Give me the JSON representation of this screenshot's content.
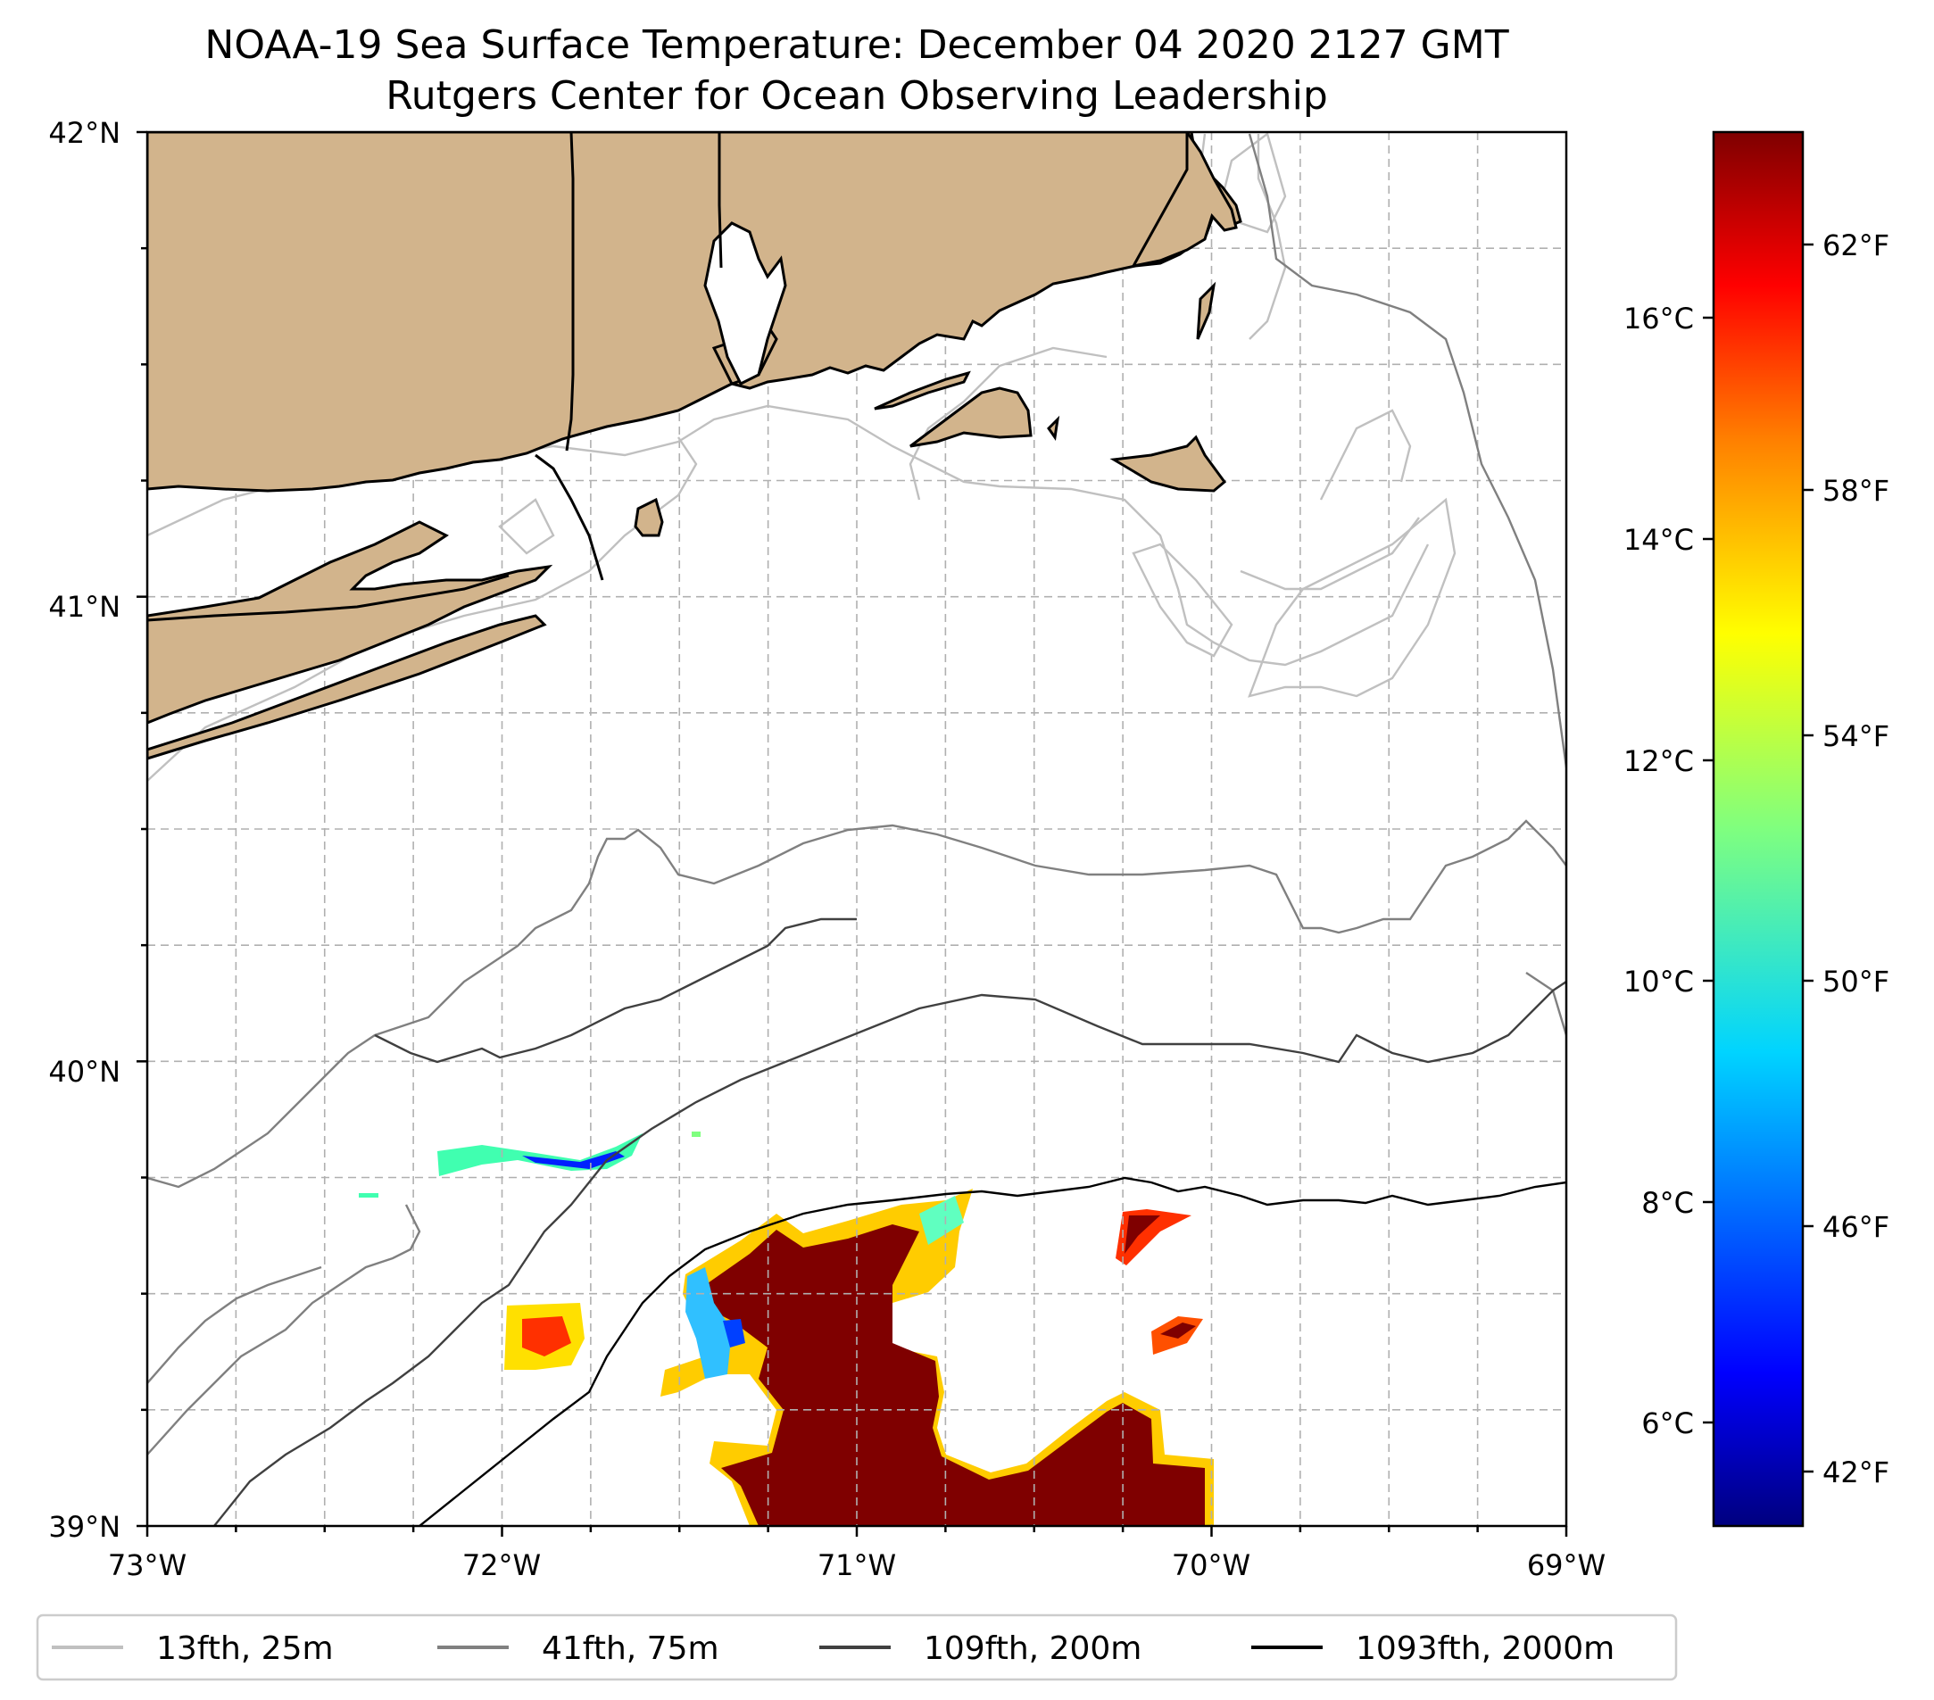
{
  "title": {
    "line1": "NOAA-19 Sea Surface Temperature: December 04 2020 2127 GMT",
    "line2": "Rutgers Center for Ocean Observing Leadership"
  },
  "map": {
    "lon_range": [
      -73,
      -69
    ],
    "lat_range": [
      39,
      42
    ],
    "lon_ticks": [
      "73°W",
      "72°W",
      "71°W",
      "70°W",
      "69°W"
    ],
    "lat_ticks": [
      "42°N",
      "41°N",
      "40°N",
      "39°N"
    ]
  },
  "colorbar": {
    "colormap": "jet",
    "celsius_ticks": [
      "16°C",
      "14°C",
      "12°C",
      "10°C",
      "8°C",
      "6°C"
    ],
    "fahrenheit_ticks": [
      "62°F",
      "58°F",
      "54°F",
      "50°F",
      "46°F",
      "42°F"
    ],
    "colors": [
      "#00007f",
      "#0000ff",
      "#007fff",
      "#00ffff",
      "#7fff7f",
      "#ffff00",
      "#ff7f00",
      "#ff0000",
      "#7f0000"
    ]
  },
  "legend": {
    "items": [
      {
        "label": "13fth, 25m",
        "color": "#c0c0c0"
      },
      {
        "label": "41fth, 75m",
        "color": "#808080"
      },
      {
        "label": "109fth, 200m",
        "color": "#404040"
      },
      {
        "label": "1093fth, 2000m",
        "color": "#000000"
      }
    ]
  },
  "colors": {
    "land": "#d2b48c",
    "grid": "#b0b0b0",
    "warm_core": "#7f0000"
  }
}
